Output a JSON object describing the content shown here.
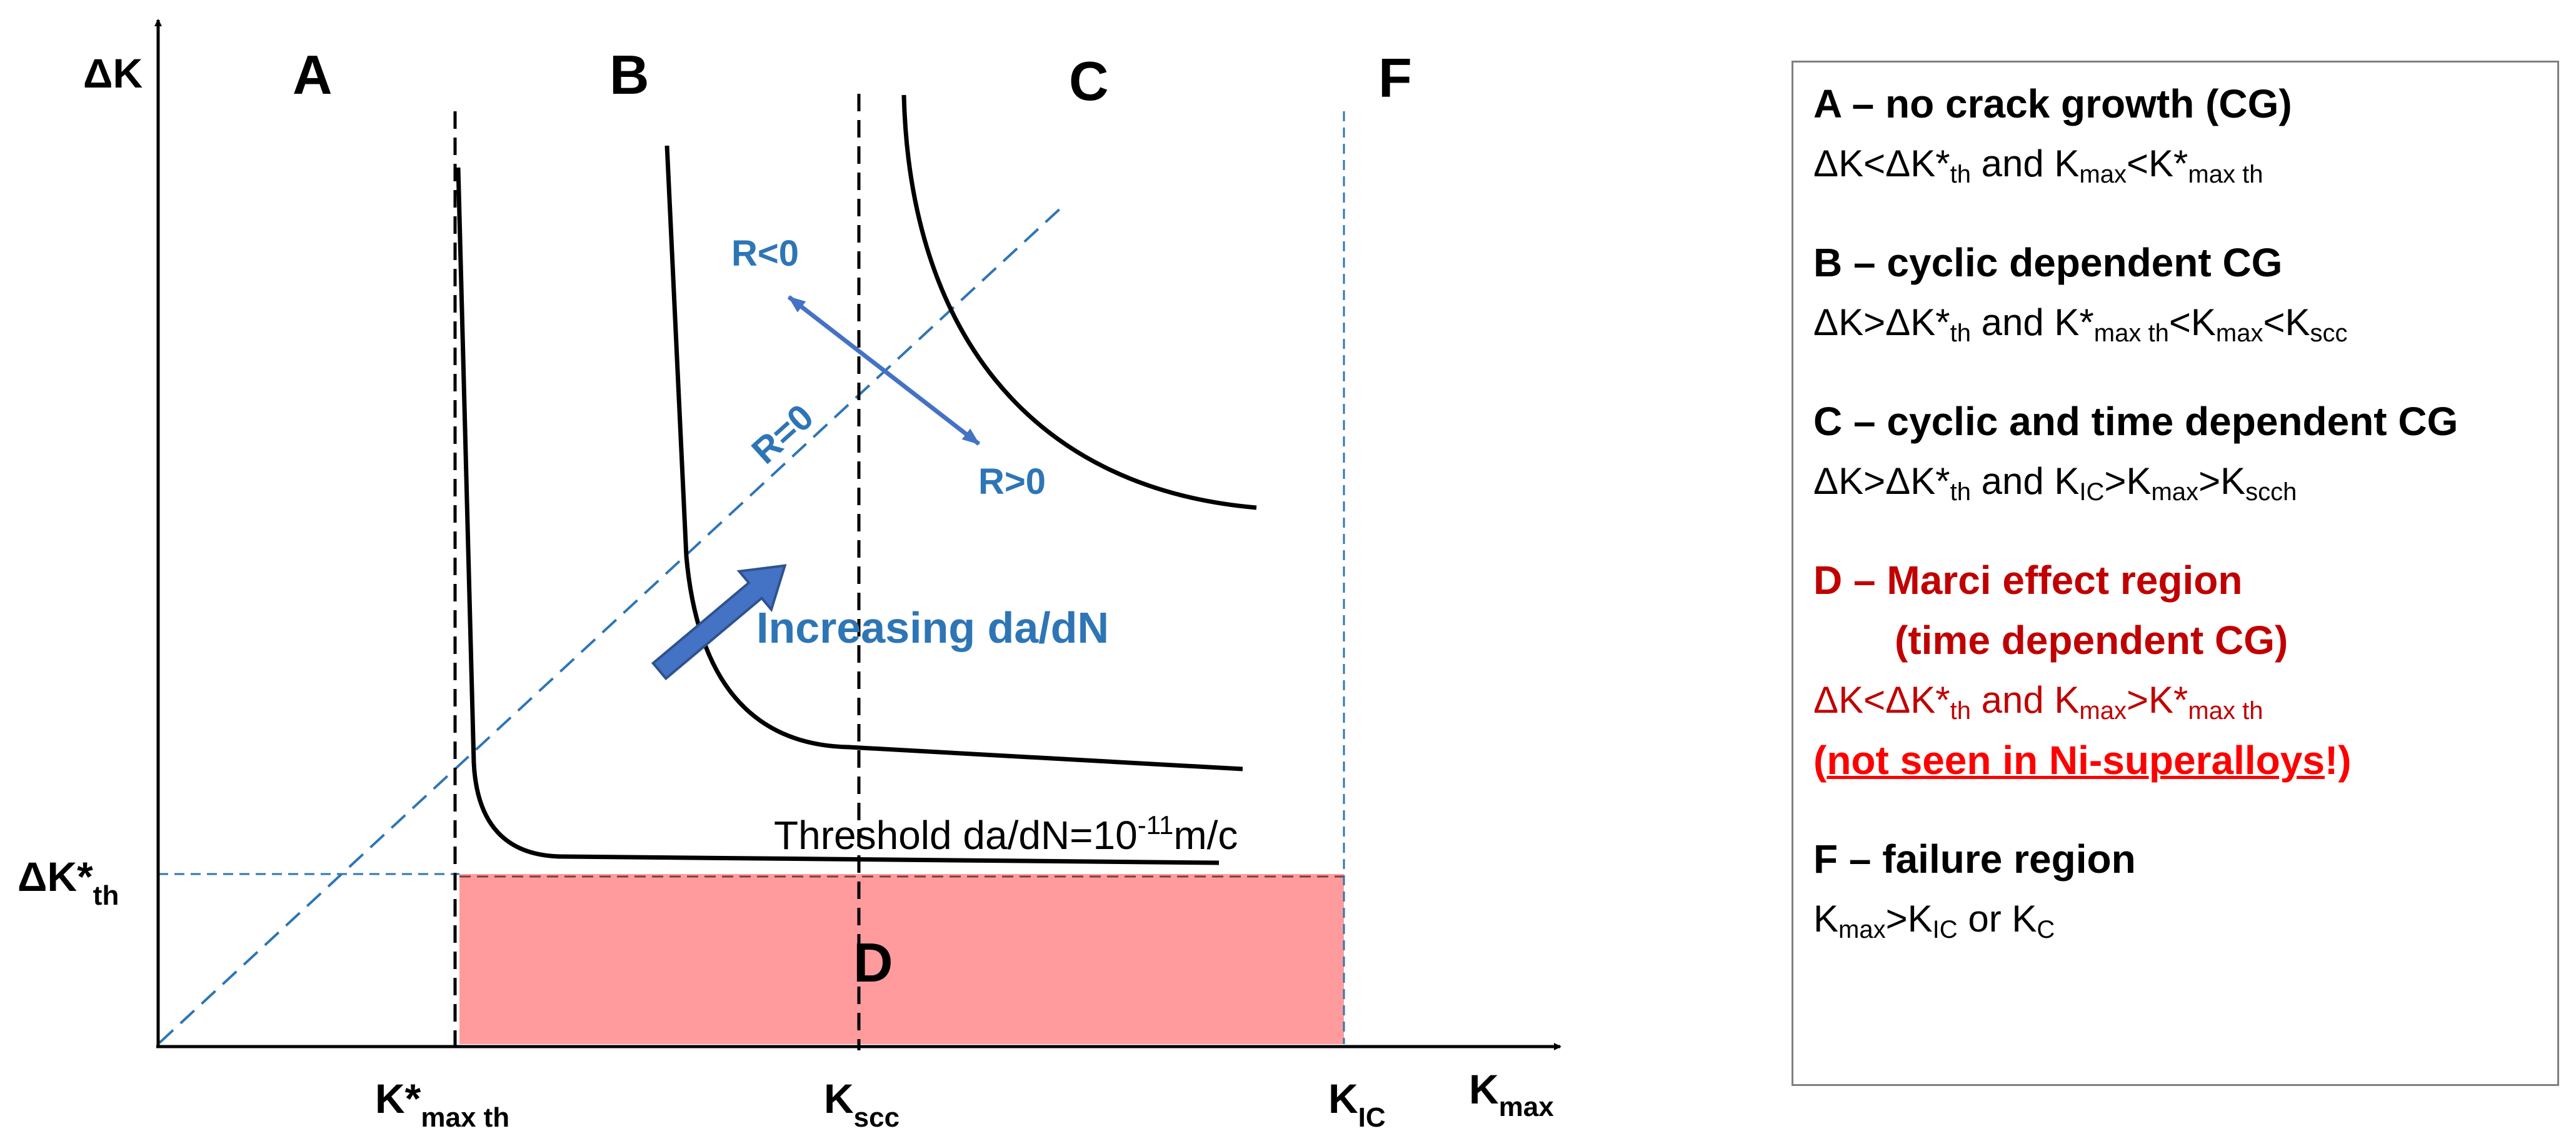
{
  "colors": {
    "black_curve": "#000000",
    "guide_blue": "#2e75b6",
    "arrow_blue": "#4472c4",
    "d_region_fill": "#ff9b9d",
    "d_text": "#7f0000",
    "red_text": "#c00000",
    "note_red": "#ff0000",
    "legend_border": "#7f7f7f"
  },
  "diagram": {
    "y_axis_label": "ΔK",
    "x_axis_label": {
      "main": "K",
      "sub": "max"
    },
    "regions": {
      "a": "A",
      "b": "B",
      "c": "C",
      "d": "D",
      "f": "F"
    },
    "delta_k_threshold_label": {
      "main": "ΔK*",
      "sub": "th"
    },
    "x_ticks": {
      "kmax_th": {
        "main": "K*",
        "sub": "max th"
      },
      "kscc": {
        "main": "K",
        "sub": "scc"
      },
      "kic": {
        "main": "K",
        "sub": "IC"
      }
    },
    "r_labels": {
      "negative": "R<0",
      "zero": "R=0",
      "positive": "R>0"
    },
    "arrow_label": "Increasing da/dN",
    "threshold": {
      "text": "Threshold da/dN=10",
      "exponent": "-11",
      "unit": "m/c"
    }
  },
  "legend": {
    "a": {
      "title": "A – no crack growth (CG)",
      "condition": [
        {
          "t": "ΔK<ΔK*"
        },
        {
          "t": "th",
          "s": "sub"
        },
        {
          "t": " and K"
        },
        {
          "t": "max",
          "s": "sub"
        },
        {
          "t": "<K*"
        },
        {
          "t": "max th",
          "s": "sub"
        }
      ]
    },
    "b": {
      "title": "B – cyclic dependent CG",
      "condition": [
        {
          "t": "ΔK>ΔK*"
        },
        {
          "t": "th",
          "s": "sub"
        },
        {
          "t": " and K*"
        },
        {
          "t": "max th",
          "s": "sub"
        },
        {
          "t": "<K"
        },
        {
          "t": "max",
          "s": "sub"
        },
        {
          "t": "<K"
        },
        {
          "t": "scc",
          "s": "sub"
        }
      ]
    },
    "c": {
      "title": "C – cyclic and time dependent CG",
      "condition": [
        {
          "t": "ΔK>ΔK*"
        },
        {
          "t": "th",
          "s": "sub"
        },
        {
          "t": " and K"
        },
        {
          "t": "IC",
          "s": "sub"
        },
        {
          "t": ">K"
        },
        {
          "t": "max",
          "s": "sub"
        },
        {
          "t": ">K"
        },
        {
          "t": "scch",
          "s": "sub"
        }
      ]
    },
    "d": {
      "title": "D – Marci effect region",
      "title_line2": "(time dependent CG)",
      "condition": [
        {
          "t": "ΔK<ΔK*"
        },
        {
          "t": "th",
          "s": "sub"
        },
        {
          "t": " and K"
        },
        {
          "t": "max",
          "s": "sub"
        },
        {
          "t": ">K*"
        },
        {
          "t": "max th",
          "s": "sub"
        }
      ],
      "note_open": "(",
      "note_underlined": "not seen in Ni-superalloys",
      "note_close": "!)"
    },
    "f": {
      "title": "F – failure region",
      "condition": [
        {
          "t": "K"
        },
        {
          "t": "max",
          "s": "sub"
        },
        {
          "t": ">K"
        },
        {
          "t": "IC",
          "s": "sub"
        },
        {
          "t": " or K"
        },
        {
          "t": "C",
          "s": "sub"
        }
      ]
    }
  }
}
